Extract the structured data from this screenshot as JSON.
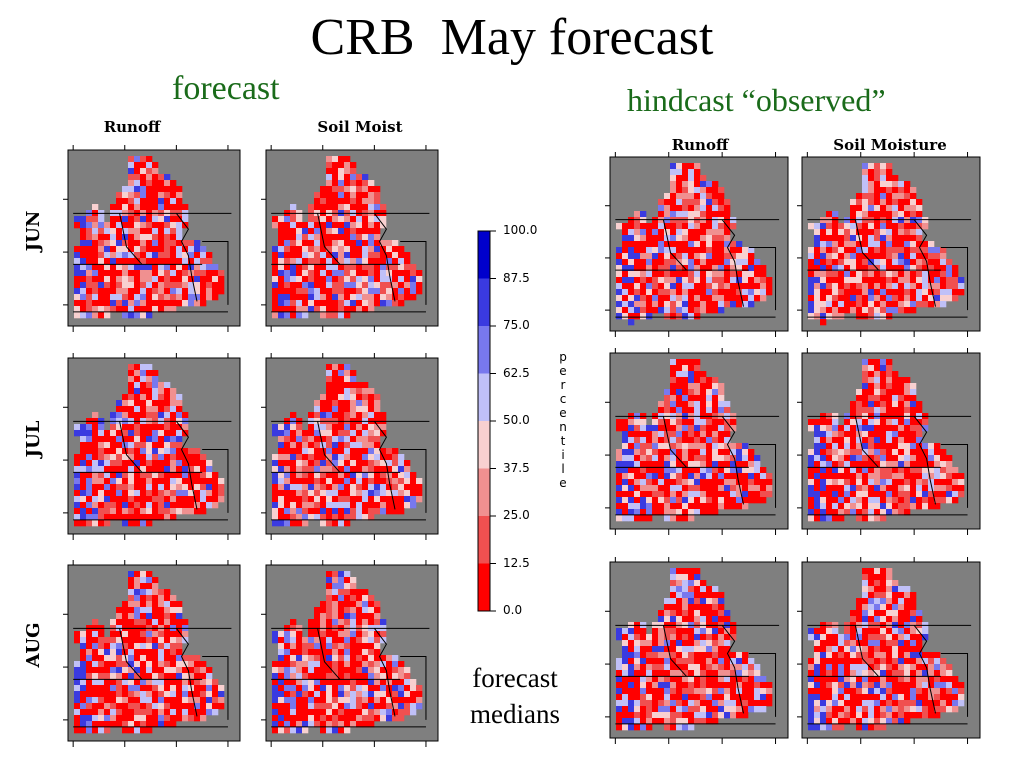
{
  "title": "CRB  May forecast",
  "left_group": {
    "heading": "forecast",
    "columns": [
      "Runoff",
      "Soil Moist"
    ],
    "rows": [
      "JUN",
      "JUL",
      "AUG"
    ]
  },
  "right_group": {
    "heading": "hindcast “observed”",
    "columns": [
      "Runoff",
      "Soil Moisture"
    ]
  },
  "colorbar": {
    "labels": [
      "100.0",
      "87.5",
      "75.0",
      "62.5",
      "50.0",
      "37.5",
      "25.0",
      "12.5",
      "0.0"
    ],
    "colors": [
      "#0000cc",
      "#3a3ae0",
      "#7878ee",
      "#c0c0f8",
      "#f8d0d0",
      "#f09090",
      "#f05050",
      "#ff0000"
    ],
    "title": [
      "p",
      "e",
      "r",
      "c",
      "e",
      "n",
      "t",
      "i",
      "l",
      "e"
    ]
  },
  "note": [
    "forecast",
    "medians"
  ],
  "colors": {
    "background_land_mask": "#7f7f7f",
    "heading_green": "#1a6b1a"
  },
  "chart_data": [
    {
      "type": "heatmap",
      "title": "forecast",
      "variable": "percentile",
      "value_range": [
        0.0,
        100.0
      ],
      "panels": [
        {
          "row": "JUN",
          "column": "Runoff",
          "dominant_class": "0.0-12.5"
        },
        {
          "row": "JUN",
          "column": "Soil Moist",
          "dominant_class": "0.0-12.5"
        },
        {
          "row": "JUL",
          "column": "Runoff",
          "dominant_class": "0.0-12.5"
        },
        {
          "row": "JUL",
          "column": "Soil Moist",
          "dominant_class": "0.0-12.5"
        },
        {
          "row": "AUG",
          "column": "Runoff",
          "dominant_class": "0.0-12.5"
        },
        {
          "row": "AUG",
          "column": "Soil Moist",
          "dominant_class": "0.0-12.5"
        }
      ]
    },
    {
      "type": "heatmap",
      "title": "hindcast “observed”",
      "variable": "percentile",
      "value_range": [
        0.0,
        100.0
      ],
      "panels": [
        {
          "row": "JUN",
          "column": "Runoff",
          "dominant_class": "0.0-12.5"
        },
        {
          "row": "JUN",
          "column": "Soil Moisture",
          "dominant_class": "0.0-12.5"
        },
        {
          "row": "JUL",
          "column": "Runoff",
          "dominant_class": "0.0-12.5"
        },
        {
          "row": "JUL",
          "column": "Soil Moisture",
          "dominant_class": "0.0-12.5"
        },
        {
          "row": "AUG",
          "column": "Runoff",
          "dominant_class": "0.0-12.5"
        },
        {
          "row": "AUG",
          "column": "Soil Moisture",
          "dominant_class": "0.0-12.5"
        }
      ]
    }
  ]
}
